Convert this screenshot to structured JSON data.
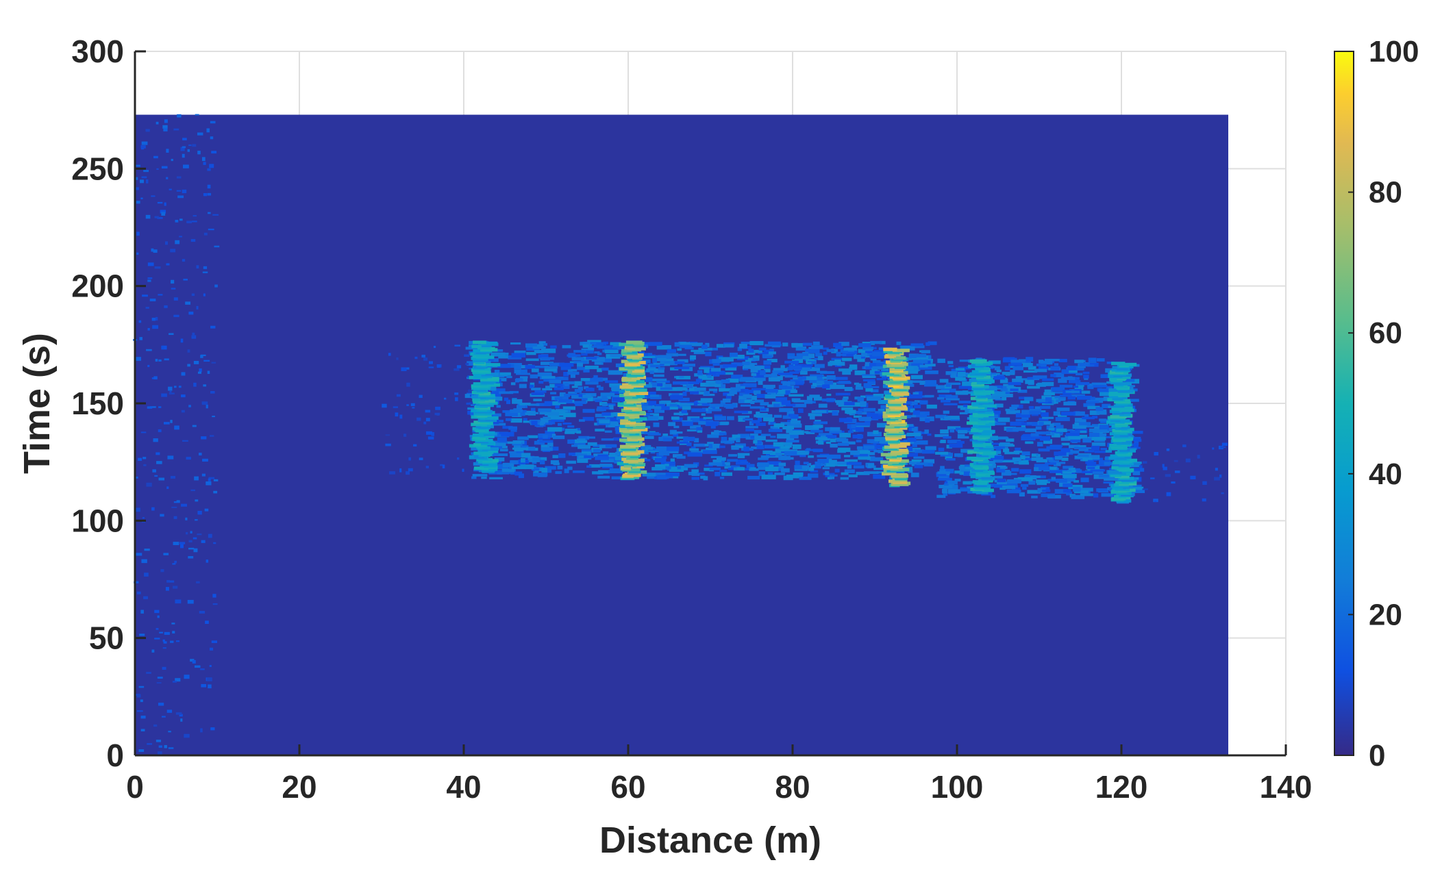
{
  "chart_data": {
    "type": "heatmap",
    "title": "",
    "xlabel": "Distance (m)",
    "ylabel": "Time (s)",
    "xlim": [
      0,
      140
    ],
    "ylim": [
      0,
      300
    ],
    "xticks": [
      0,
      20,
      40,
      60,
      80,
      100,
      120,
      140
    ],
    "yticks": [
      0,
      50,
      100,
      150,
      200,
      250,
      300
    ],
    "grid": true,
    "data_extent": {
      "x": [
        0,
        133
      ],
      "y": [
        0,
        273
      ]
    },
    "background_value": 3,
    "colormap": "parula",
    "colorbar": {
      "range": [
        0,
        100
      ],
      "ticks": [
        0,
        20,
        40,
        60,
        80,
        100
      ],
      "placement": "right"
    },
    "features": [
      {
        "kind": "vertical-stripe",
        "x": 42.5,
        "y_range": [
          121,
          176
        ],
        "peak": 55
      },
      {
        "kind": "vertical-stripe",
        "x": 60.5,
        "y_range": [
          118,
          176
        ],
        "peak": 90
      },
      {
        "kind": "vertical-stripe",
        "x": 92.5,
        "y_range": [
          115,
          173
        ],
        "peak": 95
      },
      {
        "kind": "vertical-stripe",
        "x": 103,
        "y_range": [
          112,
          168
        ],
        "peak": 55
      },
      {
        "kind": "vertical-stripe",
        "x": 120,
        "y_range": [
          108,
          167
        ],
        "peak": 55
      },
      {
        "kind": "speckle-band",
        "x_range": [
          41,
          97
        ],
        "y_range": [
          118,
          176
        ],
        "level": 22
      },
      {
        "kind": "speckle-band",
        "x_range": [
          98,
          122
        ],
        "y_range": [
          110,
          169
        ],
        "level": 22
      },
      {
        "kind": "sparse-noise",
        "x_range": [
          0,
          10
        ],
        "y_range": [
          0,
          273
        ],
        "level": 15
      },
      {
        "kind": "sparse-noise",
        "x_range": [
          30,
          41
        ],
        "y_range": [
          120,
          175
        ],
        "level": 12
      },
      {
        "kind": "sparse-noise",
        "x_range": [
          122,
          133
        ],
        "y_range": [
          108,
          135
        ],
        "level": 12
      }
    ]
  }
}
